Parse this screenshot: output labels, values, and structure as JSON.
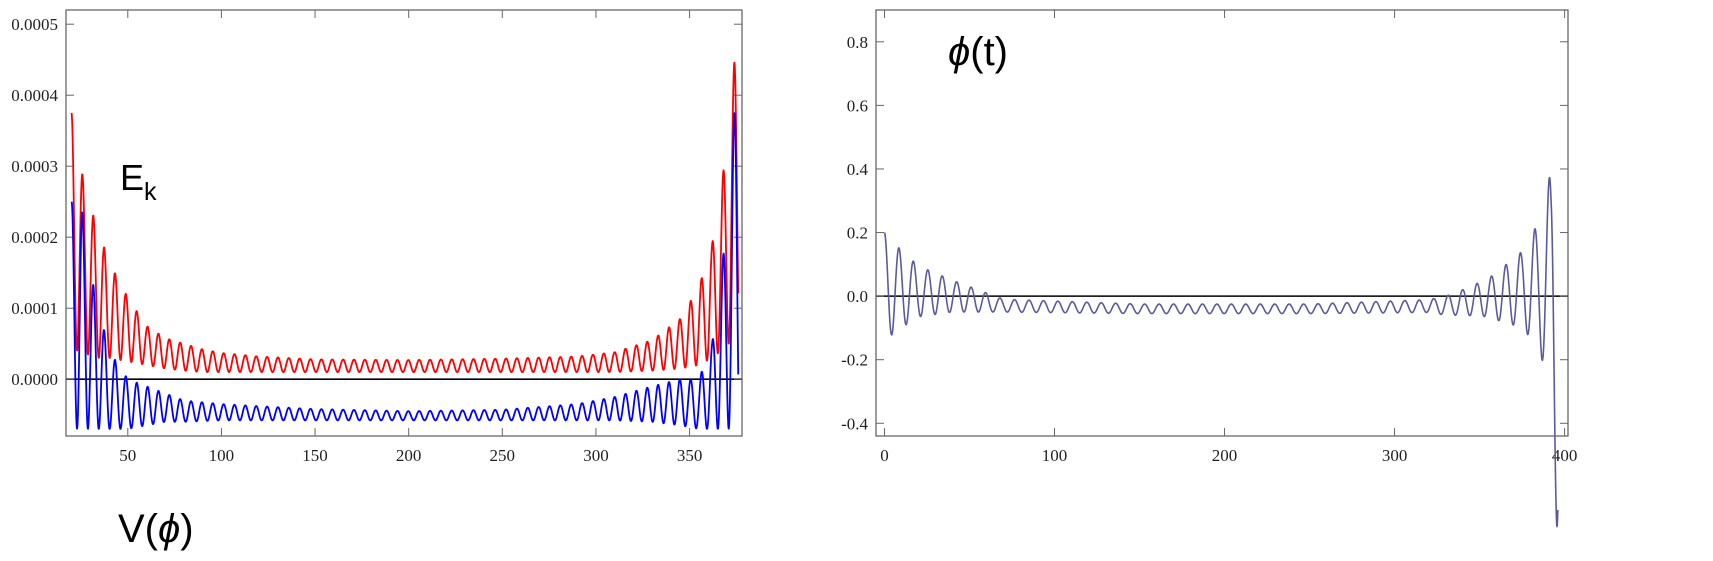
{
  "chart_data": [
    {
      "type": "line",
      "title": "",
      "xlabel": "",
      "ylabel": "",
      "xlim": [
        17,
        378
      ],
      "ylim": [
        -8e-05,
        0.00052
      ],
      "xticks": [
        50,
        100,
        150,
        200,
        250,
        300,
        350
      ],
      "yticks": [
        0.0,
        0.0001,
        0.0002,
        0.0003,
        0.0004,
        0.0005
      ],
      "ytick_labels": [
        "0.0000",
        "0.0001",
        "0.0002",
        "0.0003",
        "0.0004",
        "0.0005"
      ],
      "annotations": {
        "ek": "E",
        "ek_sub": "k",
        "vphi_pre": "V(",
        "vphi_sym": "ϕ",
        "vphi_post": ")"
      },
      "series": [
        {
          "color": "#ff0000",
          "x_start": 20,
          "x_end": 376,
          "period": 5.8,
          "envelope": {
            "x": [
              20,
              26,
              31,
              40,
              50,
              60,
              70,
              80,
              90,
              100,
              120,
              150,
              200,
              250,
              290,
              310,
              330,
              345,
              355,
              362,
              367,
              371,
              374,
              376
            ],
            "upper": [
              0.000375,
              0.000285,
              0.000235,
              0.000165,
              0.000115,
              7.5e-05,
              5.8e-05,
              5e-05,
              4.2e-05,
              3.7e-05,
              3.2e-05,
              2.8e-05,
              2.7e-05,
              2.9e-05,
              3.2e-05,
              3.8e-05,
              5.5e-05,
              8.5e-05,
              0.00013,
              0.00019,
              0.00027,
              0.00036,
              0.00045,
              0.000505
            ],
            "lower": [
              4e-05,
              4e-05,
              3e-05,
              3e-05,
              2.5e-05,
              2e-05,
              1.5e-05,
              1.2e-05,
              1e-05,
              1e-05,
              1e-05,
              1e-05,
              1e-05,
              1e-05,
              1e-05,
              1e-05,
              1.2e-05,
              1.5e-05,
              2e-05,
              3e-05,
              4e-05,
              5e-05,
              6e-05,
              6e-05
            ]
          }
        },
        {
          "color": "#0000ff",
          "x_start": 20,
          "x_end": 376,
          "period": 5.8,
          "envelope": {
            "x": [
              20,
              25,
              30,
              40,
              50,
              60,
              70,
              80,
              100,
              120,
              150,
              200,
              250,
              290,
              310,
              330,
              345,
              355,
              362,
              367,
              371,
              374,
              376
            ],
            "upper": [
              0.00025,
              0.00025,
              0.00015,
              4e-05,
              0.0,
              -1e-05,
              -2e-05,
              -3e-05,
              -3.5e-05,
              -3.8e-05,
              -4.2e-05,
              -4.5e-05,
              -4.3e-05,
              -3.5e-05,
              -2.5e-05,
              -1e-05,
              0.0,
              0.0,
              5e-05,
              0.00015,
              0.00025,
              0.00038,
              0.00049
            ],
            "lower": [
              -7e-05,
              -7e-05,
              -7e-05,
              -7e-05,
              -7e-05,
              -6.5e-05,
              -6e-05,
              -6e-05,
              -5.8e-05,
              -5.8e-05,
              -5.8e-05,
              -5.8e-05,
              -5.8e-05,
              -5.8e-05,
              -5.8e-05,
              -6e-05,
              -6.5e-05,
              -7e-05,
              -7e-05,
              -7e-05,
              -7e-05,
              -7e-05,
              -7e-05
            ]
          }
        }
      ]
    },
    {
      "type": "line",
      "title": "",
      "xlabel": "",
      "ylabel": "",
      "xlim": [
        -5,
        402
      ],
      "ylim": [
        -0.44,
        0.9
      ],
      "xticks": [
        0,
        100,
        200,
        300,
        400
      ],
      "yticks": [
        -0.4,
        -0.2,
        0.0,
        0.2,
        0.4,
        0.6,
        0.8
      ],
      "ytick_labels": [
        "-0.4",
        "-0.2",
        "0.0",
        "0.2",
        "0.4",
        "0.6",
        "0.8"
      ],
      "annotations": {
        "phit_sym": "ϕ",
        "phit_post": "(t)"
      },
      "series": [
        {
          "color": "#5a5a9e",
          "x_start": 0,
          "x_end": 396,
          "period": 8.5,
          "offset": {
            "x": [
              0,
              40,
              70,
              150,
              250,
              330,
              360,
              396
            ],
            "y": [
              0.03,
              0.0,
              -0.03,
              -0.04,
              -0.04,
              -0.03,
              0.0,
              0.05
            ]
          },
          "amplitude": {
            "x": [
              0,
              8,
              20,
              40,
              70,
              150,
              250,
              320,
              340,
              355,
              375,
              385,
              392,
              396
            ],
            "y": [
              0.17,
              0.13,
              0.08,
              0.05,
              0.02,
              0.015,
              0.015,
              0.02,
              0.04,
              0.06,
              0.12,
              0.2,
              0.35,
              0.85
            ]
          }
        }
      ]
    }
  ]
}
